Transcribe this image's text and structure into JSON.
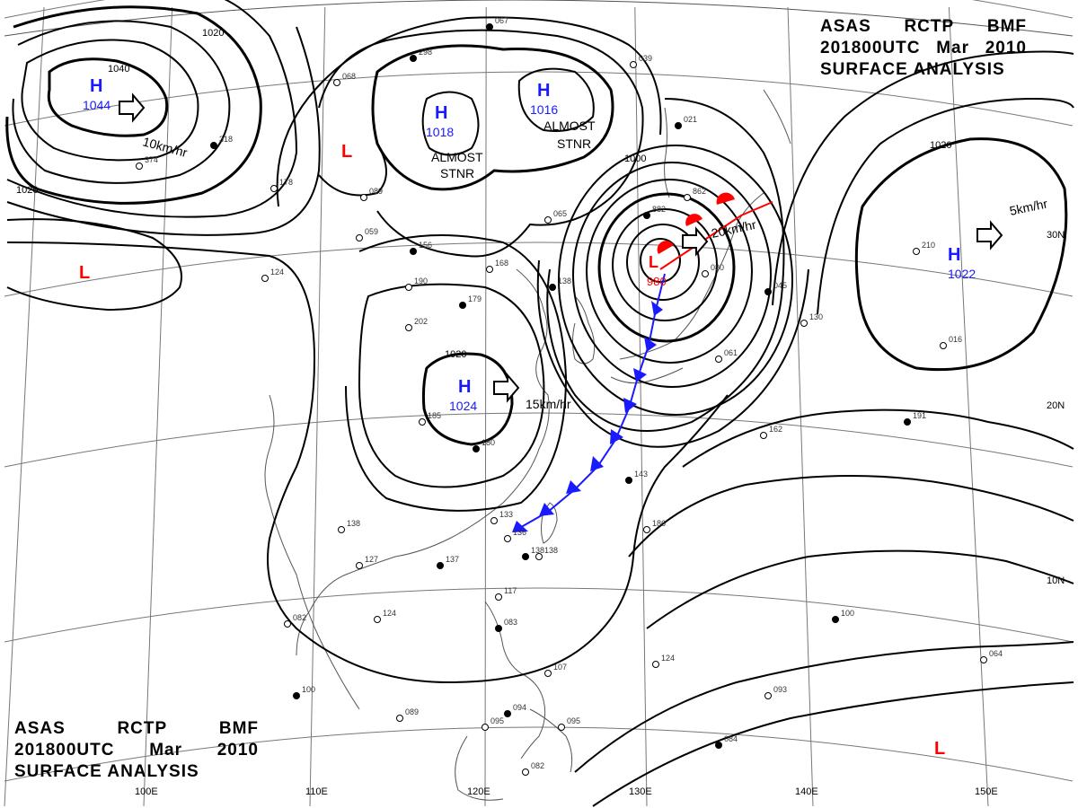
{
  "title": {
    "product": "ASAS",
    "station": "RCTP",
    "agency": "BMF",
    "time": "201800UTC",
    "month": "Mar",
    "year": "2010",
    "type": "SURFACE ANALYSIS"
  },
  "colors": {
    "high": "#1a1aff",
    "low": "#ff0000",
    "cold_front": "#1a1aff",
    "warm_front": "#ff0000",
    "isobar": "#000000",
    "grid": "#777777"
  },
  "pressure_centers": [
    {
      "type": "H",
      "value": "1044"
    },
    {
      "type": "H",
      "value": "1018"
    },
    {
      "type": "H",
      "value": "1016"
    },
    {
      "type": "H",
      "value": "1024"
    },
    {
      "type": "H",
      "value": "1022"
    },
    {
      "type": "L",
      "value": "980"
    },
    {
      "type": "L",
      "value": ""
    },
    {
      "type": "L",
      "value": ""
    },
    {
      "type": "L",
      "value": ""
    }
  ],
  "isobar_labels": [
    "1040",
    "1020",
    "1020",
    "1020",
    "1000",
    "1020"
  ],
  "motion_labels": [
    "10km/hr",
    "15km/hr",
    "20km/hr",
    "5km/hr"
  ],
  "stationary_labels": [
    {
      "line1": "ALMOST",
      "line2": "STNR"
    },
    {
      "line1": "ALMOST",
      "line2": "STNR"
    }
  ],
  "longitude_labels": [
    "100E",
    "110E",
    "120E",
    "130E",
    "140E",
    "150E"
  ],
  "latitude_labels": [
    "30N",
    "20N",
    "10N"
  ],
  "station_values": [
    "067",
    "039",
    "068",
    "298",
    "089",
    "059",
    "156",
    "190",
    "202",
    "179",
    "168",
    "185",
    "180",
    "138",
    "127",
    "137",
    "124",
    "082",
    "100",
    "089",
    "095",
    "094",
    "082",
    "117",
    "083",
    "107",
    "095",
    "084",
    "093",
    "064",
    "100",
    "124",
    "186",
    "143",
    "138",
    "162",
    "191",
    "210",
    "130",
    "045",
    "061",
    "080",
    "882",
    "862",
    "065",
    "021",
    "016",
    "374",
    "318",
    "178",
    "124",
    "138",
    "133",
    "136",
    "138"
  ]
}
